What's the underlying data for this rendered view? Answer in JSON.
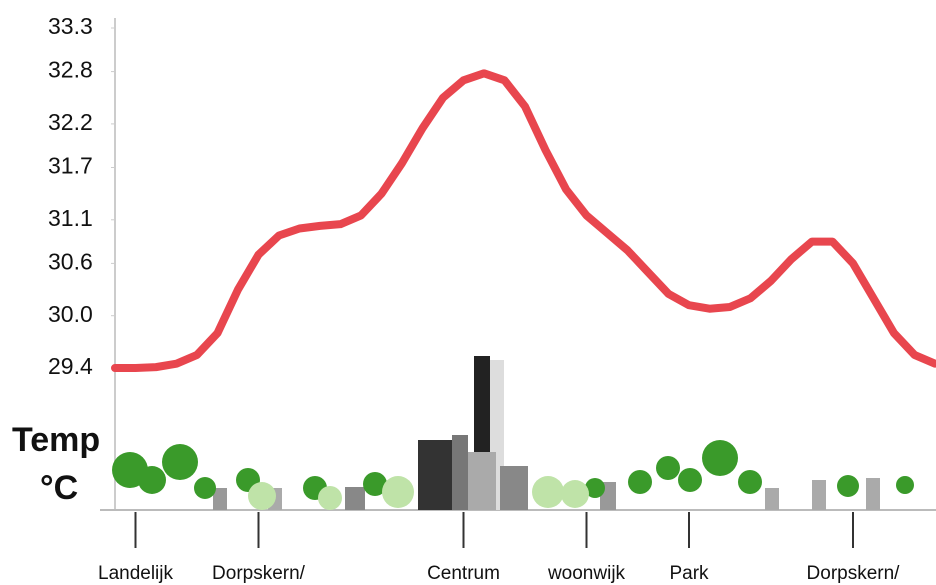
{
  "chart_data": {
    "type": "line",
    "y_label_1": "Temp",
    "y_label_2": "°C",
    "categories": [
      null,
      "Landelijk",
      null,
      null,
      null,
      null,
      null,
      "Dorpskern/",
      null,
      null,
      null,
      null,
      null,
      null,
      null,
      null,
      null,
      "Centrum",
      null,
      null,
      null,
      null,
      null,
      "woonwijk",
      null,
      null,
      null,
      null,
      "Park",
      null,
      null,
      null,
      null,
      null,
      null,
      null,
      "Dorpskern/",
      null,
      null,
      null,
      null
    ],
    "series": [
      {
        "color": "#e8464e",
        "values": [
          29.4,
          29.4,
          29.41,
          29.45,
          29.55,
          29.8,
          30.3,
          30.7,
          30.92,
          31.0,
          31.03,
          31.05,
          31.15,
          31.4,
          31.75,
          32.15,
          32.5,
          32.7,
          32.78,
          32.7,
          32.4,
          31.9,
          31.45,
          31.15,
          30.95,
          30.75,
          30.5,
          30.25,
          30.12,
          30.08,
          30.1,
          30.2,
          30.4,
          30.65,
          30.85,
          30.85,
          30.6,
          30.2,
          29.8,
          29.55,
          29.45
        ]
      }
    ],
    "ylim": [
      29.4,
      33.3
    ],
    "yticks": [
      {
        "value": 29.4,
        "label": "29.4"
      },
      {
        "value": 30,
        "label": "30.0"
      },
      30.6,
      31.1,
      31.7,
      32.2,
      32.8,
      33.3
    ]
  }
}
